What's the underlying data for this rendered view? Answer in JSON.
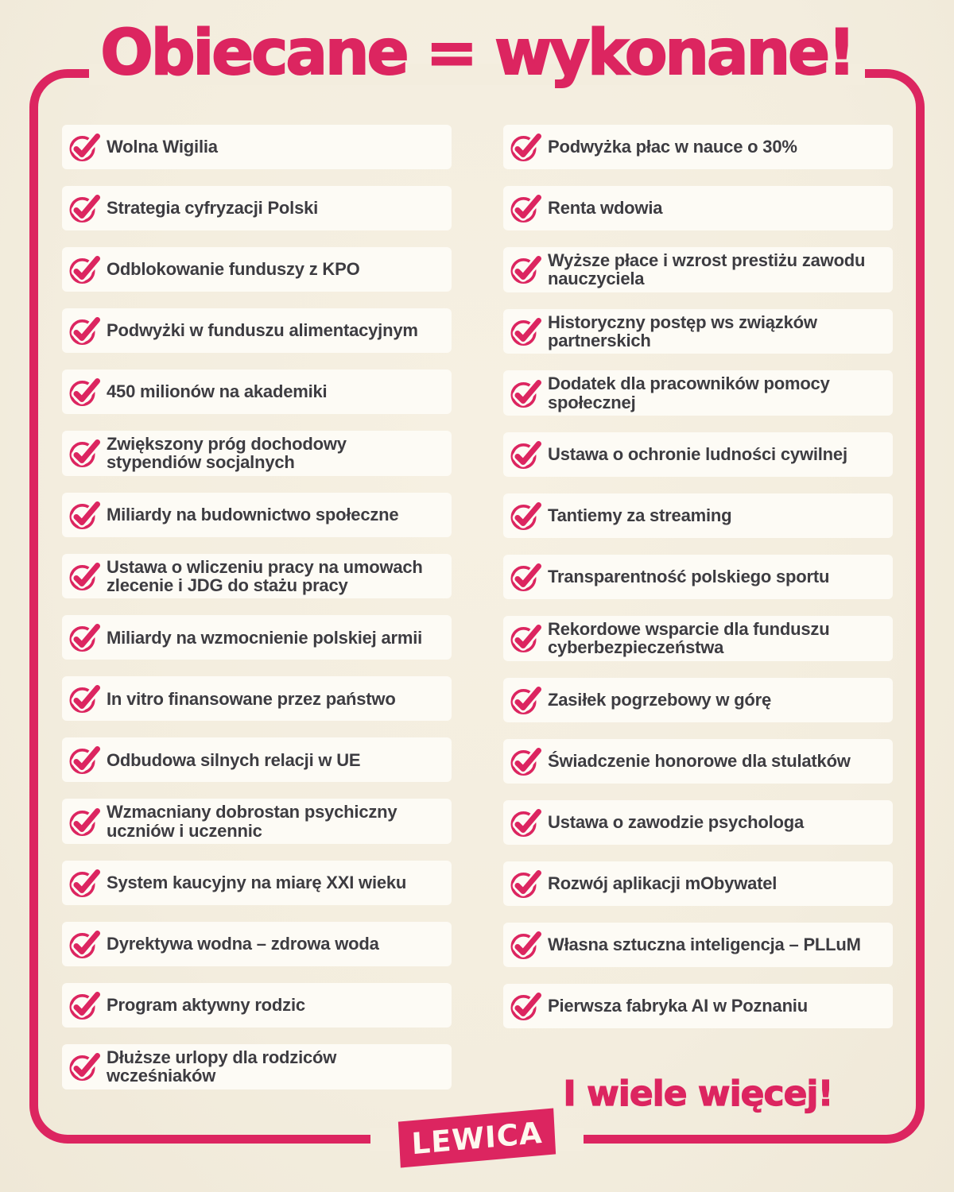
{
  "title": "Obiecane = wykonane!",
  "colors": {
    "accent": "#dc2560",
    "background": "#f3edde",
    "card": "#fdfbf5",
    "text": "#3d3c41",
    "logo_text": "#fdf8ee"
  },
  "icons": {
    "item_icon": "check-circle-icon"
  },
  "columns": {
    "left": [
      {
        "label": "Wolna Wigilia"
      },
      {
        "label": "Strategia cyfryzacji Polski"
      },
      {
        "label": "Odblokowanie funduszy z KPO"
      },
      {
        "label": "Podwyżki w funduszu alimentacyjnym"
      },
      {
        "label": "450 milionów na akademiki"
      },
      {
        "label": "Zwiększony próg dochodowy stypendiów socjalnych"
      },
      {
        "label": "Miliardy na budownictwo społeczne"
      },
      {
        "label": "Ustawa o wliczeniu pracy na umowach zlecenie i JDG do stażu pracy"
      },
      {
        "label": "Miliardy na wzmocnienie polskiej armii"
      },
      {
        "label": "In vitro finansowane przez państwo"
      },
      {
        "label": "Odbudowa silnych relacji w UE"
      },
      {
        "label": "Wzmacniany dobrostan psychiczny uczniów i uczennic"
      },
      {
        "label": "System kaucyjny na miarę XXI wieku"
      },
      {
        "label": "Dyrektywa wodna – zdrowa woda"
      },
      {
        "label": "Program aktywny rodzic"
      },
      {
        "label": "Dłuższe urlopy dla rodziców wcześniaków"
      }
    ],
    "right": [
      {
        "label": "Podwyżka płac w nauce o 30%"
      },
      {
        "label": "Renta wdowia"
      },
      {
        "label": "Wyższe płace i wzrost prestiżu zawodu nauczyciela"
      },
      {
        "label": "Historyczny postęp ws związków partnerskich"
      },
      {
        "label": "Dodatek dla pracowników pomocy społecznej"
      },
      {
        "label": "Ustawa o ochronie ludności cywilnej"
      },
      {
        "label": "Tantiemy za streaming"
      },
      {
        "label": "Transparentność polskiego sportu"
      },
      {
        "label": "Rekordowe wsparcie dla funduszu cyberbezpieczeństwa"
      },
      {
        "label": "Zasiłek pogrzebowy w górę"
      },
      {
        "label": "Świadczenie honorowe dla stulatków"
      },
      {
        "label": "Ustawa o zawodzie psychologa"
      },
      {
        "label": "Rozwój aplikacji mObywatel"
      },
      {
        "label": "Własna sztuczna inteligencja – PLLuM"
      },
      {
        "label": "Pierwsza fabryka AI w Poznaniu"
      }
    ]
  },
  "footer": {
    "more_text": "I wiele więcej!",
    "logo_text": "LEWICA"
  }
}
